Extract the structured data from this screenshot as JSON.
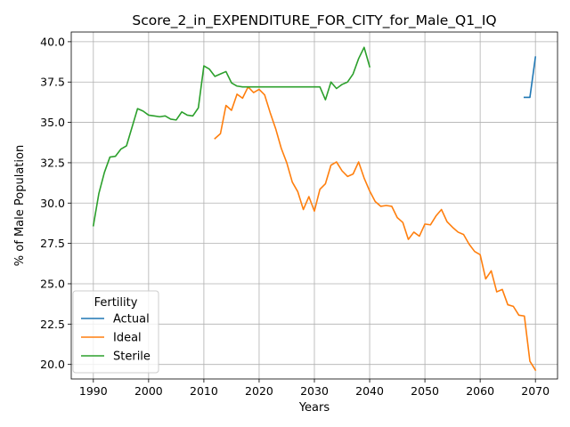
{
  "chart_data": {
    "type": "line",
    "title": "Score_2_in_EXPENDITURE_FOR_CITY_for_Male_Q1_IQ",
    "xlabel": "Years",
    "ylabel": "% of Male Population",
    "xlim": [
      1986,
      2074
    ],
    "ylim": [
      19.1,
      40.6
    ],
    "xticks": [
      1990,
      2000,
      2010,
      2020,
      2030,
      2040,
      2050,
      2060,
      2070
    ],
    "yticks": [
      20.0,
      22.5,
      25.0,
      27.5,
      30.0,
      32.5,
      35.0,
      37.5,
      40.0
    ],
    "ytick_labels": [
      "20.0",
      "22.5",
      "25.0",
      "27.5",
      "30.0",
      "32.5",
      "35.0",
      "37.5",
      "40.0"
    ],
    "grid": true,
    "legend": {
      "title": "Fertility",
      "position": "lower-left"
    },
    "series": [
      {
        "name": "Actual",
        "color": "#1f77b4",
        "x": [
          2068,
          2069,
          2070
        ],
        "y": [
          36.55,
          36.55,
          39.05
        ]
      },
      {
        "name": "Ideal",
        "color": "#ff7f0e",
        "x": [
          2012,
          2013,
          2014,
          2015,
          2016,
          2017,
          2018,
          2019,
          2020,
          2021,
          2022,
          2023,
          2024,
          2025,
          2026,
          2027,
          2028,
          2029,
          2030,
          2031,
          2032,
          2033,
          2034,
          2035,
          2036,
          2037,
          2038,
          2039,
          2040,
          2041,
          2042,
          2043,
          2044,
          2045,
          2046,
          2047,
          2048,
          2049,
          2050,
          2051,
          2052,
          2053,
          2054,
          2055,
          2056,
          2057,
          2058,
          2059,
          2060,
          2061,
          2062,
          2063,
          2064,
          2065,
          2066,
          2067,
          2068,
          2069,
          2070
        ],
        "y": [
          34.0,
          34.3,
          36.05,
          35.75,
          36.75,
          36.5,
          37.2,
          36.85,
          37.05,
          36.7,
          35.6,
          34.6,
          33.4,
          32.5,
          31.3,
          30.7,
          29.6,
          30.4,
          29.5,
          30.85,
          31.2,
          32.35,
          32.55,
          32.0,
          31.65,
          31.8,
          32.55,
          31.55,
          30.75,
          30.1,
          29.8,
          29.85,
          29.8,
          29.1,
          28.8,
          27.75,
          28.2,
          27.95,
          28.7,
          28.65,
          29.2,
          29.6,
          28.85,
          28.5,
          28.2,
          28.05,
          27.45,
          27.0,
          26.8,
          25.3,
          25.8,
          24.5,
          24.65,
          23.7,
          23.6,
          23.05,
          23.0,
          20.2,
          19.65
        ]
      },
      {
        "name": "Sterile",
        "color": "#2ca02c",
        "x": [
          1990,
          1991,
          1992,
          1993,
          1994,
          1995,
          1996,
          1997,
          1998,
          1999,
          2000,
          2001,
          2002,
          2003,
          2004,
          2005,
          2006,
          2007,
          2008,
          2009,
          2010,
          2011,
          2012,
          2013,
          2014,
          2015,
          2016,
          2017,
          2018,
          2019,
          2020,
          2021,
          2022,
          2023,
          2024,
          2025,
          2026,
          2027,
          2028,
          2029,
          2030,
          2031,
          2032,
          2033,
          2034,
          2035,
          2036,
          2037,
          2038,
          2039,
          2040
        ],
        "y": [
          28.6,
          30.6,
          31.9,
          32.85,
          32.9,
          33.35,
          33.55,
          34.7,
          35.85,
          35.7,
          35.45,
          35.4,
          35.35,
          35.4,
          35.2,
          35.15,
          35.65,
          35.45,
          35.4,
          35.9,
          38.5,
          38.3,
          37.85,
          38.0,
          38.15,
          37.45,
          37.25,
          37.2,
          37.2,
          37.2,
          37.2,
          37.2,
          37.2,
          37.2,
          37.2,
          37.2,
          37.2,
          37.2,
          37.2,
          37.2,
          37.2,
          37.2,
          36.4,
          37.5,
          37.1,
          37.35,
          37.5,
          38.0,
          38.95,
          39.65,
          38.45
        ]
      }
    ]
  }
}
